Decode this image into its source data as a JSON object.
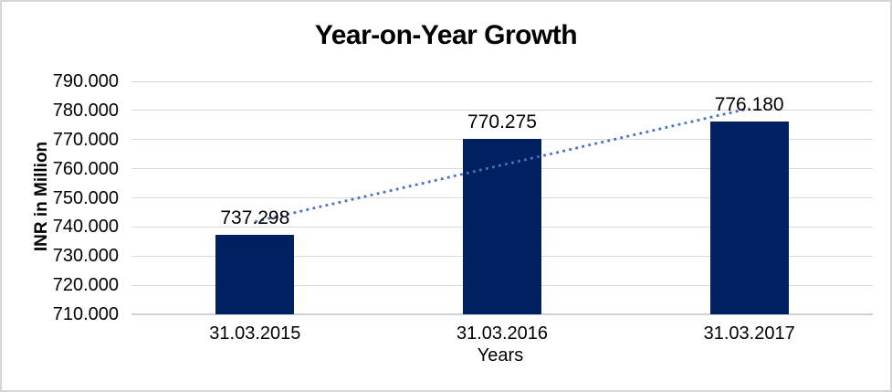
{
  "chart_data": {
    "type": "bar",
    "title": "Year-on-Year Growth",
    "categories": [
      "31.03.2015",
      "31.03.2016",
      "31.03.2017"
    ],
    "values": [
      737.298,
      770.275,
      776.18
    ],
    "data_labels": [
      "737.298",
      "770.275",
      "776.180"
    ],
    "xlabel": "Years",
    "ylabel": "INR in Million",
    "ylim": [
      710,
      790
    ],
    "yticks": [
      710,
      720,
      730,
      740,
      750,
      760,
      770,
      780,
      790
    ],
    "ytick_labels": [
      "710.000",
      "720.000",
      "730.000",
      "740.000",
      "750.000",
      "760.000",
      "770.000",
      "780.000",
      "790.000"
    ],
    "grid": true,
    "legend": "none",
    "trendline": {
      "type": "linear",
      "style": "dotted"
    },
    "colors": {
      "bar": "#002060",
      "trendline": "#4472c4",
      "gridline": "#d9d9d9",
      "axisline": "#d2d2d2",
      "text": "#000000",
      "border": "#d6d6d6",
      "background": "#ffffff"
    }
  }
}
